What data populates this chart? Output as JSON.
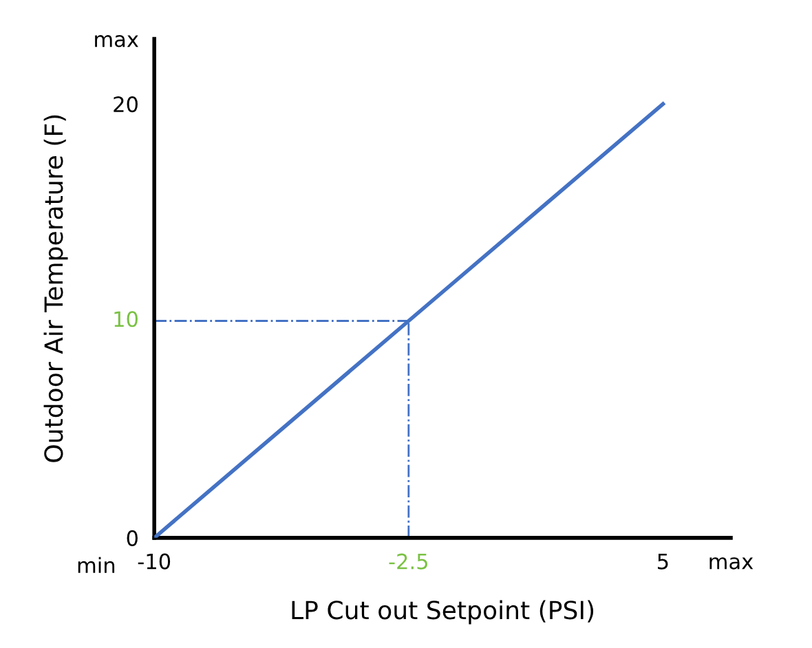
{
  "chart_data": {
    "type": "line",
    "xlabel": "LP Cut out Setpoint (PSI)",
    "ylabel": "Outdoor Air Temperature (F)",
    "x": [
      -10,
      -2.5,
      5
    ],
    "series": [
      {
        "color": "#4472c4",
        "values": [
          0,
          10,
          20
        ]
      }
    ],
    "xlim": [
      -10,
      7
    ],
    "ylim": [
      0,
      23
    ],
    "xticks": [
      -10,
      5,
      {
        "value": 7,
        "label": "max"
      }
    ],
    "yticks": [
      0,
      20,
      {
        "value": 23,
        "label": "max"
      }
    ],
    "ref_lines": [
      {
        "axis": "x",
        "value": -2.5,
        "label": "-2.5",
        "color": "#4472c4",
        "line_style": "dashdot"
      },
      {
        "axis": "y",
        "value": 10,
        "label": "10",
        "color": "#4472c4",
        "line_style": "dashdot"
      }
    ],
    "annotations": [
      "min"
    ],
    "grid": false,
    "legend": false,
    "marker": "none",
    "line_style": "solid"
  }
}
